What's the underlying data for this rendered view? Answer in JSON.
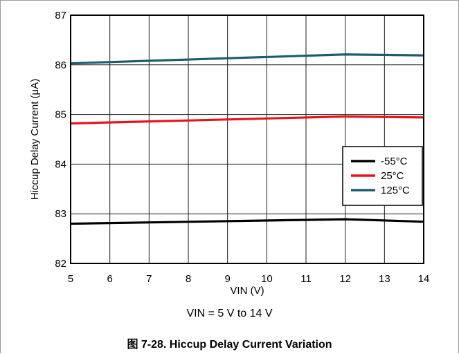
{
  "chart_data": {
    "type": "line",
    "xlabel": "VIN (V)",
    "ylabel": "Hiccup Delay Current (μA)",
    "xlim": [
      5,
      14
    ],
    "ylim": [
      82,
      87
    ],
    "x_ticks": [
      "5",
      "6",
      "7",
      "8",
      "9",
      "10",
      "11",
      "12",
      "13",
      "14"
    ],
    "y_ticks": [
      "82",
      "83",
      "84",
      "85",
      "86",
      "87"
    ],
    "grid": true,
    "legend_position": "right",
    "x": [
      5,
      12,
      14
    ],
    "series": [
      {
        "name": "-55°C",
        "color": "#000000",
        "values": [
          82.8,
          82.89,
          82.84
        ]
      },
      {
        "name": "25°C",
        "color": "#e8141b",
        "values": [
          84.82,
          84.96,
          84.94
        ]
      },
      {
        "name": "125°C",
        "color": "#1a5e6e",
        "values": [
          86.03,
          86.21,
          86.19
        ]
      }
    ]
  },
  "condition_text": "VIN = 5 V to 14 V",
  "caption": "图 7-28. Hiccup Delay Current Variation"
}
